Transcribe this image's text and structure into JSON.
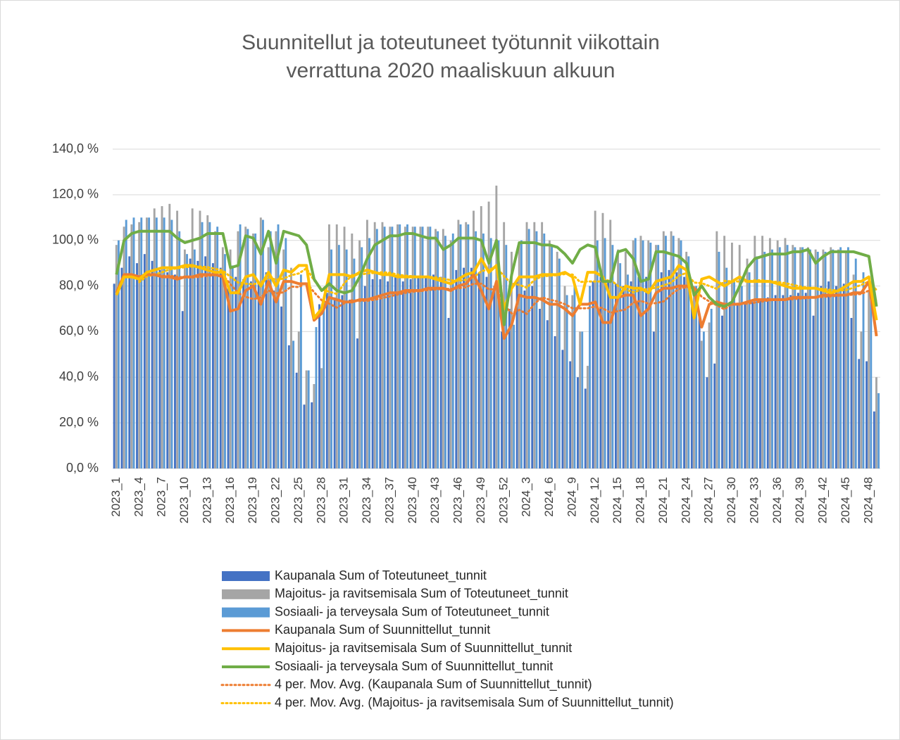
{
  "chart_data": {
    "type": "bar_line",
    "title": [
      "Suunnitellut ja toteutuneet työtunnit viikottain",
      "verrattuna 2020 maaliskuun alkuun"
    ],
    "categories": [
      "2023_1",
      null,
      null,
      "2023_4",
      null,
      null,
      "2023_7",
      null,
      null,
      "2023_10",
      null,
      null,
      "2023_13",
      null,
      null,
      "2023_16",
      null,
      null,
      "2023_19",
      null,
      null,
      "2023_22",
      null,
      null,
      "2023_25",
      null,
      null,
      "2023_28",
      null,
      null,
      "2023_31",
      null,
      null,
      "2023_34",
      null,
      null,
      "2023_37",
      null,
      null,
      "2023_40",
      null,
      null,
      "2023_43",
      null,
      null,
      "2023_46",
      null,
      null,
      "2023_49",
      null,
      null,
      "2023_52",
      null,
      null,
      "2024_3",
      null,
      null,
      "2024_6",
      null,
      null,
      "2024_9",
      null,
      null,
      "2024_12",
      null,
      null,
      "2024_15",
      null,
      null,
      "2024_18",
      null,
      null,
      "2024_21",
      null,
      null,
      "2024_24",
      null,
      null,
      "2024_27",
      null,
      null,
      "2024_30",
      null,
      null,
      "2024_33",
      null,
      null,
      "2024_36",
      null,
      null,
      "2024_39",
      null,
      null,
      "2024_42",
      null,
      null,
      "2024_45",
      null,
      null,
      "2024_48",
      null
    ],
    "ylim": [
      0,
      140
    ],
    "yticks": [
      {
        "value": 0,
        "label": "0,0 %"
      },
      {
        "value": 20,
        "label": "20,0 %"
      },
      {
        "value": 40,
        "label": "40,0 %"
      },
      {
        "value": 60,
        "label": "60,0 %"
      },
      {
        "value": 80,
        "label": "80,0 %"
      },
      {
        "value": 100,
        "label": "100,0 %"
      },
      {
        "value": 120,
        "label": "120,0 %"
      },
      {
        "value": 140,
        "label": "140,0 %"
      }
    ],
    "grid": true,
    "legend": "bottom",
    "series": [
      {
        "name": "Kaupanala Sum of Toteutuneet_tunnit",
        "kind": "bar",
        "color": "#4472c4",
        "values": [
          81,
          88,
          93,
          90,
          94,
          91,
          87,
          86,
          85,
          69,
          92,
          91,
          93,
          90,
          88,
          80,
          84,
          83,
          82,
          82,
          86,
          78,
          71,
          54,
          42,
          28,
          29,
          72,
          77,
          75,
          76,
          74,
          57,
          80,
          83,
          83,
          82,
          84,
          82,
          83,
          84,
          84,
          85,
          84,
          66,
          87,
          88,
          88,
          86,
          84,
          80,
          60,
          70,
          83,
          78,
          80,
          70,
          65,
          58,
          52,
          47,
          40,
          35,
          82,
          84,
          82,
          81,
          80,
          82,
          84,
          84,
          60,
          86,
          87,
          86,
          84,
          71,
          68,
          40,
          46,
          67,
          73,
          72,
          72,
          73,
          74,
          75,
          76,
          76,
          76,
          77,
          77,
          67,
          80,
          82,
          80,
          81,
          66,
          48,
          47,
          25
        ]
      },
      {
        "name": "Majoitus- ja ravitsemisala Sum of Toteutuneet_tunnit",
        "kind": "bar",
        "color": "#a5a5a5",
        "values": [
          98,
          106,
          107,
          108,
          110,
          114,
          115,
          116,
          113,
          96,
          114,
          113,
          111,
          104,
          97,
          96,
          104,
          106,
          103,
          110,
          97,
          104,
          96,
          88,
          60,
          43,
          37,
          44,
          107,
          107,
          106,
          103,
          100,
          109,
          108,
          108,
          106,
          107,
          106,
          106,
          106,
          106,
          105,
          105,
          100,
          109,
          108,
          113,
          115,
          117,
          124,
          108,
          95,
          98,
          108,
          108,
          108,
          100,
          95,
          80,
          76,
          60,
          45,
          113,
          112,
          109,
          96,
          95,
          100,
          102,
          100,
          98,
          104,
          104,
          101,
          95,
          80,
          56,
          64,
          104,
          102,
          99,
          98,
          92,
          102,
          102,
          101,
          100,
          101,
          98,
          97,
          97,
          96,
          96,
          97,
          96,
          95,
          85,
          60,
          78,
          40
        ]
      },
      {
        "name": "Sosiaali- ja terveysala Sum of Toteutuneet_tunnit",
        "kind": "bar",
        "color": "#5b9bd5",
        "values": [
          100,
          109,
          110,
          110,
          110,
          110,
          110,
          109,
          104,
          94,
          96,
          108,
          108,
          106,
          94,
          89,
          107,
          105,
          103,
          109,
          104,
          107,
          101,
          56,
          85,
          43,
          62,
          74,
          96,
          98,
          96,
          92,
          97,
          101,
          105,
          106,
          106,
          107,
          107,
          106,
          106,
          106,
          104,
          102,
          103,
          107,
          107,
          104,
          103,
          101,
          100,
          98,
          63,
          100,
          105,
          104,
          103,
          98,
          92,
          76,
          80,
          60,
          80,
          100,
          101,
          98,
          90,
          85,
          101,
          100,
          99,
          98,
          102,
          102,
          100,
          93,
          80,
          60,
          70,
          95,
          88,
          82,
          80,
          86,
          93,
          95,
          96,
          97,
          98,
          97,
          97,
          96,
          95,
          95,
          96,
          97,
          97,
          92,
          86,
          82,
          33
        ]
      },
      {
        "name": "Kaupanala Sum of Suunnittellut_tunnit",
        "kind": "line",
        "color": "#ed7d31",
        "values": [
          77,
          85,
          85,
          84,
          85,
          85,
          84,
          84,
          83,
          84,
          84,
          85,
          85,
          85,
          84,
          69,
          70,
          78,
          80,
          72,
          82,
          73,
          82,
          82,
          81,
          81,
          65,
          68,
          75,
          74,
          73,
          73,
          74,
          74,
          75,
          76,
          77,
          77,
          78,
          78,
          78,
          79,
          79,
          79,
          78,
          80,
          81,
          85,
          78,
          70,
          82,
          57,
          63,
          76,
          75,
          75,
          74,
          72,
          72,
          70,
          67,
          72,
          72,
          73,
          64,
          64,
          75,
          76,
          76,
          67,
          70,
          77,
          79,
          79,
          80,
          80,
          79,
          62,
          72,
          73,
          72,
          72,
          72,
          73,
          74,
          74,
          74,
          74,
          74,
          75,
          75,
          75,
          75,
          76,
          76,
          76,
          76,
          77,
          77,
          82,
          58
        ]
      },
      {
        "name": "Majoitus- ja ravitsemisala Sum of Suunnittellut_tunnit",
        "kind": "line",
        "color": "#ffc000",
        "values": [
          76,
          84,
          84,
          83,
          86,
          87,
          88,
          88,
          88,
          89,
          89,
          88,
          87,
          86,
          86,
          77,
          77,
          84,
          85,
          80,
          86,
          80,
          87,
          86,
          89,
          89,
          66,
          70,
          85,
          85,
          85,
          84,
          86,
          87,
          86,
          85,
          85,
          84,
          84,
          84,
          84,
          84,
          83,
          82,
          81,
          83,
          85,
          86,
          92,
          86,
          89,
          70,
          79,
          84,
          84,
          84,
          85,
          85,
          85,
          86,
          84,
          72,
          86,
          86,
          84,
          75,
          75,
          80,
          79,
          79,
          77,
          82,
          83,
          84,
          89,
          87,
          66,
          83,
          84,
          82,
          80,
          82,
          84,
          82,
          82,
          82,
          82,
          81,
          80,
          79,
          79,
          79,
          79,
          78,
          77,
          78,
          80,
          82,
          82,
          84,
          65
        ]
      },
      {
        "name": "Sosiaali- ja terveysala Sum of Suunnittellut_tunnit",
        "kind": "line",
        "color": "#70ad47",
        "values": [
          85,
          100,
          103,
          104,
          104,
          104,
          104,
          104,
          101,
          99,
          100,
          101,
          103,
          103,
          103,
          88,
          89,
          102,
          101,
          94,
          104,
          90,
          104,
          103,
          102,
          98,
          83,
          78,
          81,
          78,
          77,
          78,
          84,
          92,
          98,
          100,
          102,
          102,
          103,
          103,
          102,
          101,
          101,
          96,
          98,
          101,
          101,
          101,
          100,
          90,
          100,
          63,
          85,
          99,
          99,
          99,
          98,
          98,
          97,
          94,
          90,
          96,
          98,
          97,
          82,
          82,
          95,
          96,
          92,
          82,
          83,
          95,
          95,
          94,
          93,
          90,
          76,
          80,
          75,
          72,
          71,
          73,
          80,
          88,
          92,
          93,
          94,
          94,
          94,
          95,
          95,
          96,
          90,
          93,
          95,
          95,
          95,
          95,
          94,
          93,
          71
        ]
      }
    ],
    "trendlines": [
      {
        "name": "4 per. Mov. Avg. (Kaupanala Sum of Suunnittellut_tunnit)",
        "type": "moving_average",
        "series": 3,
        "period": 4,
        "color": "#ed7d31"
      },
      {
        "name": "4 per. Mov. Avg. (Majoitus- ja ravitsemisala Sum of Suunnittellut_tunnit)",
        "type": "moving_average",
        "series": 4,
        "period": 4,
        "color": "#ffc000"
      }
    ]
  }
}
